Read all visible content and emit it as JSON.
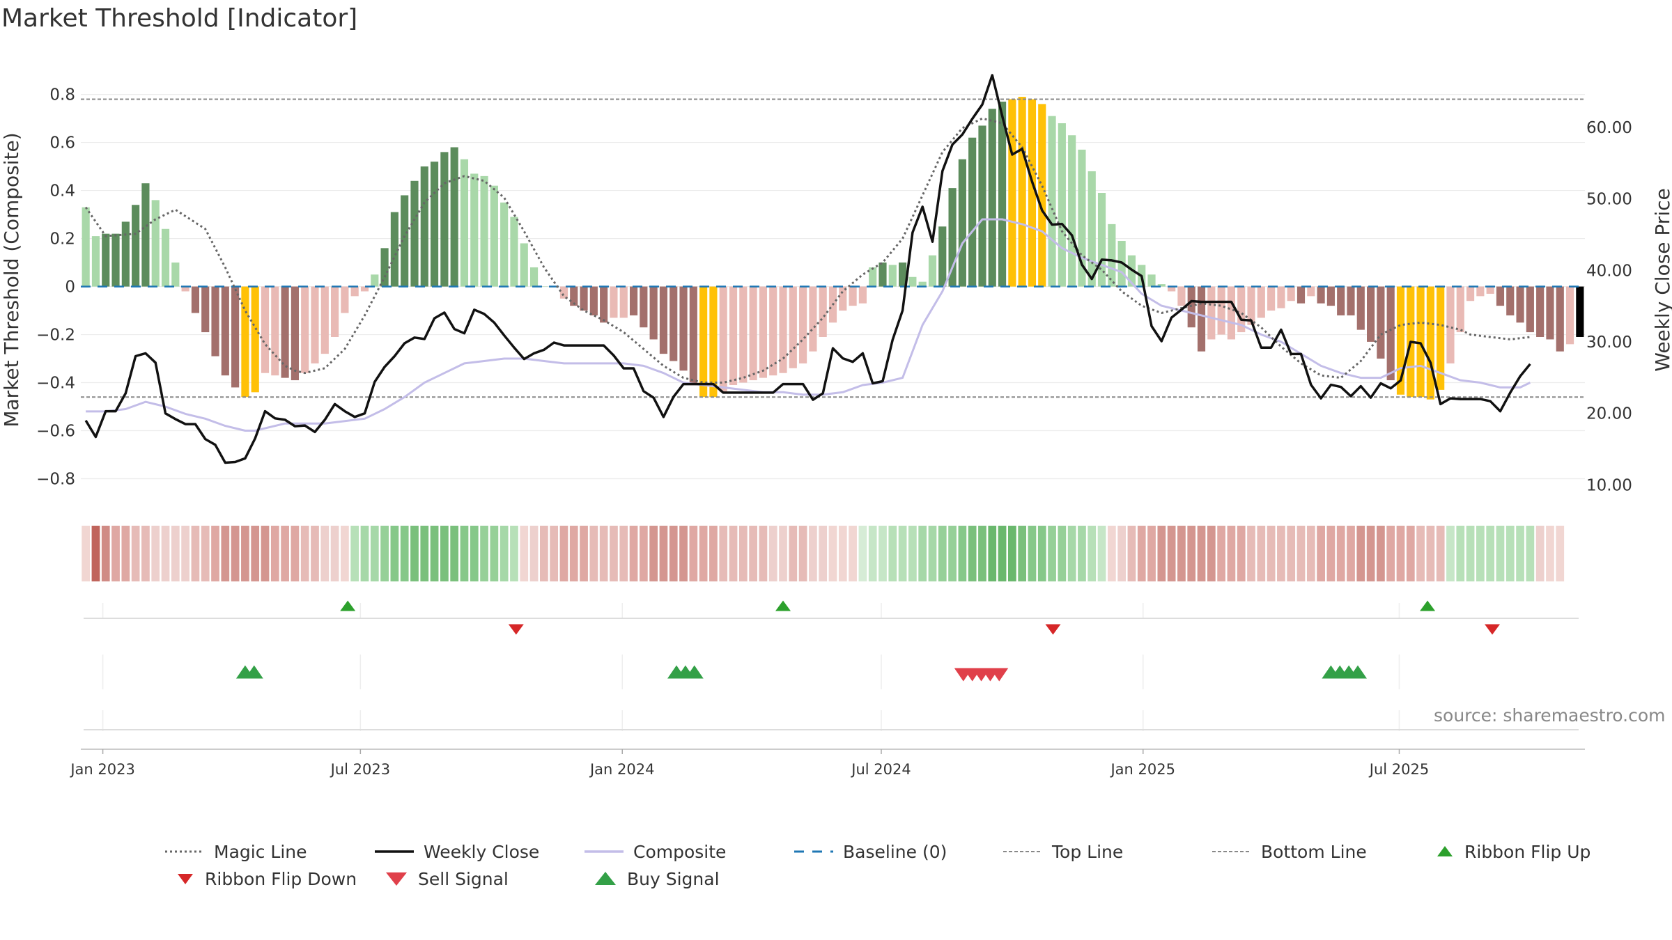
{
  "chart_data": {
    "type": "bar",
    "title": "Market Threshold [Indicator]",
    "ylabel": "Market Threshold (Composite)",
    "y2label": "Weekly Close Price",
    "ylim": [
      -0.9,
      0.88
    ],
    "y2lim": [
      7.5,
      67.3
    ],
    "yticks": [
      -0.8,
      -0.6,
      -0.4,
      -0.2,
      0,
      0.2,
      0.4,
      0.6,
      0.8
    ],
    "ytick_labels": [
      "−0.8",
      "−0.6",
      "−0.4",
      "−0.2",
      "0",
      "0.2",
      "0.4",
      "0.6",
      "0.8"
    ],
    "y2ticks": [
      10,
      20,
      30,
      40,
      50,
      60
    ],
    "y2tick_labels": [
      "10.00",
      "20.00",
      "30.00",
      "40.00",
      "50.00",
      "60.00"
    ],
    "xtick_labels": [
      "Jan 2023",
      "Jul 2023",
      "Jan 2024",
      "Jul 2024",
      "Jan 2025",
      "Jul 2025"
    ],
    "xtick_weeks": [
      1.71,
      27.57,
      53.86,
      79.86,
      106.14,
      131.86
    ],
    "legend_position": "bottom",
    "top_line": 0.78,
    "bottom_line": -0.46,
    "bar_values": [
      0.33,
      0.21,
      0.22,
      0.22,
      0.27,
      0.34,
      0.43,
      0.36,
      0.24,
      0.1,
      -0.02,
      -0.11,
      -0.19,
      -0.29,
      -0.37,
      -0.42,
      -0.46,
      -0.44,
      -0.36,
      -0.37,
      -0.38,
      -0.39,
      -0.36,
      -0.32,
      -0.28,
      -0.21,
      -0.11,
      -0.04,
      -0.02,
      0.05,
      0.16,
      0.31,
      0.38,
      0.44,
      0.5,
      0.52,
      0.56,
      0.58,
      0.53,
      0.47,
      0.46,
      0.42,
      0.35,
      0.29,
      0.18,
      0.08,
      0.0,
      0.0,
      -0.05,
      -0.08,
      -0.1,
      -0.12,
      -0.15,
      -0.13,
      -0.13,
      -0.12,
      -0.17,
      -0.22,
      -0.28,
      -0.31,
      -0.35,
      -0.41,
      -0.46,
      -0.46,
      -0.44,
      -0.41,
      -0.4,
      -0.39,
      -0.38,
      -0.37,
      -0.36,
      -0.34,
      -0.32,
      -0.27,
      -0.21,
      -0.15,
      -0.1,
      -0.08,
      -0.07,
      0.08,
      0.1,
      0.09,
      0.1,
      0.04,
      0.02,
      0.13,
      0.25,
      0.41,
      0.53,
      0.62,
      0.67,
      0.74,
      0.77,
      0.78,
      0.79,
      0.78,
      0.76,
      0.71,
      0.68,
      0.63,
      0.57,
      0.48,
      0.39,
      0.26,
      0.19,
      0.13,
      0.09,
      0.05,
      0.01,
      -0.02,
      -0.08,
      -0.17,
      -0.27,
      -0.22,
      -0.2,
      -0.22,
      -0.19,
      -0.16,
      -0.13,
      -0.1,
      -0.09,
      -0.06,
      -0.07,
      -0.04,
      -0.07,
      -0.08,
      -0.12,
      -0.12,
      -0.18,
      -0.23,
      -0.3,
      -0.39,
      -0.45,
      -0.46,
      -0.46,
      -0.47,
      -0.43,
      -0.32,
      -0.19,
      -0.06,
      -0.04,
      -0.03,
      -0.08,
      -0.12,
      -0.15,
      -0.19,
      -0.21,
      -0.22,
      -0.27,
      -0.24,
      -0.21
    ],
    "bar_colors": [
      "#a9d8a9",
      "#a9d8a9",
      "#5c8c5c",
      "#5c8c5c",
      "#5c8c5c",
      "#5c8c5c",
      "#5c8c5c",
      "#a9d8a9",
      "#a9d8a9",
      "#a9d8a9",
      "#e9bab5",
      "#a3706c",
      "#a3706c",
      "#a3706c",
      "#a3706c",
      "#a3706c",
      "#ffc107",
      "#ffc107",
      "#e9bab5",
      "#e9bab5",
      "#a3706c",
      "#a3706c",
      "#e9bab5",
      "#e9bab5",
      "#e9bab5",
      "#e9bab5",
      "#e9bab5",
      "#e9bab5",
      "#e9bab5",
      "#a9d8a9",
      "#5c8c5c",
      "#5c8c5c",
      "#5c8c5c",
      "#5c8c5c",
      "#5c8c5c",
      "#5c8c5c",
      "#5c8c5c",
      "#5c8c5c",
      "#a9d8a9",
      "#a9d8a9",
      "#a9d8a9",
      "#a9d8a9",
      "#a9d8a9",
      "#a9d8a9",
      "#a9d8a9",
      "#a9d8a9",
      "#a9d8a9",
      "#a9d8a9",
      "#e9bab5",
      "#a3706c",
      "#a3706c",
      "#a3706c",
      "#a3706c",
      "#e9bab5",
      "#e9bab5",
      "#a3706c",
      "#a3706c",
      "#a3706c",
      "#a3706c",
      "#a3706c",
      "#a3706c",
      "#a3706c",
      "#ffc107",
      "#ffc107",
      "#e9bab5",
      "#e9bab5",
      "#e9bab5",
      "#e9bab5",
      "#e9bab5",
      "#e9bab5",
      "#e9bab5",
      "#e9bab5",
      "#e9bab5",
      "#e9bab5",
      "#e9bab5",
      "#e9bab5",
      "#e9bab5",
      "#e9bab5",
      "#e9bab5",
      "#a9d8a9",
      "#5c8c5c",
      "#a9d8a9",
      "#5c8c5c",
      "#a9d8a9",
      "#a9d8a9",
      "#a9d8a9",
      "#5c8c5c",
      "#5c8c5c",
      "#5c8c5c",
      "#5c8c5c",
      "#5c8c5c",
      "#5c8c5c",
      "#5c8c5c",
      "#ffc107",
      "#ffc107",
      "#ffc107",
      "#ffc107",
      "#a9d8a9",
      "#a9d8a9",
      "#a9d8a9",
      "#a9d8a9",
      "#a9d8a9",
      "#a9d8a9",
      "#a9d8a9",
      "#a9d8a9",
      "#a9d8a9",
      "#a9d8a9",
      "#a9d8a9",
      "#a9d8a9",
      "#e9bab5",
      "#e9bab5",
      "#a3706c",
      "#a3706c",
      "#e9bab5",
      "#e9bab5",
      "#e9bab5",
      "#e9bab5",
      "#e9bab5",
      "#e9bab5",
      "#e9bab5",
      "#e9bab5",
      "#e9bab5",
      "#a3706c",
      "#e9bab5",
      "#a3706c",
      "#a3706c",
      "#a3706c",
      "#a3706c",
      "#a3706c",
      "#a3706c",
      "#a3706c",
      "#a3706c",
      "#ffc107",
      "#ffc107",
      "#ffc107",
      "#ffc107",
      "#ffc107",
      "#e9bab5",
      "#e9bab5",
      "#e9bab5",
      "#e9bab5",
      "#e9bab5",
      "#a3706c",
      "#a3706c",
      "#a3706c",
      "#a3706c",
      "#a3706c",
      "#a3706c",
      "#a3706c",
      "#e9bab5"
    ],
    "ribbon_colors": [
      "#f1d6d2",
      "#c0645c",
      "#d08b85",
      "#dfa8a3",
      "#dfa8a3",
      "#e6bbb7",
      "#e6bbb7",
      "#edd0cd",
      "#edd0cd",
      "#edd0cd",
      "#edd0cd",
      "#e6bbb7",
      "#e6bbb7",
      "#dfa8a3",
      "#d49690",
      "#d49690",
      "#d49690",
      "#d49690",
      "#d49690",
      "#dfa8a3",
      "#dfa8a3",
      "#dfa8a3",
      "#e6bbb7",
      "#e6bbb7",
      "#edd0cd",
      "#edd0cd",
      "#f1d6d2",
      "#b7e0b8",
      "#a6d8a8",
      "#a6d8a8",
      "#96d098",
      "#86c889",
      "#86c889",
      "#7ac07c",
      "#7ac07c",
      "#7ac07c",
      "#7ac07c",
      "#7ac07c",
      "#86c889",
      "#86c889",
      "#96d098",
      "#96d098",
      "#a6d8a8",
      "#b7e0b8",
      "#f1d6d2",
      "#edd0cd",
      "#e6bbb7",
      "#e6bbb7",
      "#dfa8a3",
      "#dfa8a3",
      "#dfa8a3",
      "#e6bbb7",
      "#e6bbb7",
      "#e6bbb7",
      "#e6bbb7",
      "#dfa8a3",
      "#dfa8a3",
      "#d49690",
      "#d49690",
      "#d49690",
      "#d49690",
      "#dfa8a3",
      "#dfa8a3",
      "#dfa8a3",
      "#e6bbb7",
      "#e6bbb7",
      "#e6bbb7",
      "#e6bbb7",
      "#e6bbb7",
      "#edd0cd",
      "#edd0cd",
      "#e6bbb7",
      "#e6bbb7",
      "#edd0cd",
      "#edd0cd",
      "#f1d6d2",
      "#f1d6d2",
      "#f1d6d2",
      "#d6ecd6",
      "#c6e6c7",
      "#c6e6c7",
      "#b7e0b8",
      "#b7e0b8",
      "#b7e0b8",
      "#a6d8a8",
      "#a6d8a8",
      "#96d098",
      "#96d098",
      "#86c889",
      "#7ac07c",
      "#7ac07c",
      "#6ab86d",
      "#6ab86d",
      "#6ab86d",
      "#7ac07c",
      "#86c889",
      "#86c889",
      "#96d098",
      "#96d098",
      "#a6d8a8",
      "#a6d8a8",
      "#b7e0b8",
      "#c6e6c7",
      "#f1d6d2",
      "#edd0cd",
      "#e6bbb7",
      "#dfa8a3",
      "#dfa8a3",
      "#d49690",
      "#d49690",
      "#d49690",
      "#d49690",
      "#d49690",
      "#d49690",
      "#dfa8a3",
      "#dfa8a3",
      "#dfa8a3",
      "#e6bbb7",
      "#e6bbb7",
      "#e6bbb7",
      "#e6bbb7",
      "#e6bbb7",
      "#e6bbb7",
      "#e6bbb7",
      "#dfa8a3",
      "#dfa8a3",
      "#dfa8a3",
      "#dfa8a3",
      "#d49690",
      "#d49690",
      "#d49690",
      "#dfa8a3",
      "#dfa8a3",
      "#dfa8a3",
      "#e6bbb7",
      "#e6bbb7",
      "#e6bbb7",
      "#c6e6c7",
      "#b7e0b8",
      "#b7e0b8",
      "#b7e0b8",
      "#b7e0b8",
      "#b7e0b8",
      "#b7e0b8",
      "#b7e0b8",
      "#b7e0b8",
      "#edd0cd",
      "#f1d6d2",
      "#f1d6d2"
    ],
    "series": [
      {
        "name": "Magic Line",
        "axis": "left",
        "x": [
          0,
          2,
          5,
          7,
          9,
          12,
          14,
          16,
          18,
          20,
          21,
          22,
          24,
          26,
          28,
          30,
          32,
          34,
          36,
          38,
          40,
          42,
          44,
          46,
          48,
          50,
          52,
          54,
          56,
          58,
          60,
          62,
          64,
          66,
          68,
          70,
          72,
          74,
          76,
          78,
          80,
          82,
          84,
          86,
          88,
          90,
          92,
          94,
          96,
          98,
          100,
          102,
          104,
          106,
          108,
          110,
          112,
          114,
          116,
          118,
          120,
          122,
          124,
          126,
          128,
          130,
          132,
          134,
          136,
          138,
          139,
          141,
          143,
          145
        ],
        "values": [
          0.33,
          0.21,
          0.22,
          0.28,
          0.32,
          0.24,
          0.08,
          -0.1,
          -0.24,
          -0.33,
          -0.35,
          -0.36,
          -0.34,
          -0.26,
          -0.12,
          0.04,
          0.21,
          0.35,
          0.43,
          0.46,
          0.44,
          0.37,
          0.23,
          0.08,
          -0.04,
          -0.1,
          -0.14,
          -0.19,
          -0.26,
          -0.33,
          -0.38,
          -0.4,
          -0.4,
          -0.38,
          -0.35,
          -0.3,
          -0.22,
          -0.13,
          -0.02,
          0.05,
          0.1,
          0.2,
          0.38,
          0.56,
          0.66,
          0.7,
          0.68,
          0.58,
          0.42,
          0.23,
          0.13,
          0.07,
          -0.02,
          -0.08,
          -0.11,
          -0.09,
          -0.07,
          -0.08,
          -0.11,
          -0.17,
          -0.25,
          -0.32,
          -0.37,
          -0.38,
          -0.31,
          -0.2,
          -0.16,
          -0.15,
          -0.16,
          -0.18,
          -0.2,
          -0.21,
          -0.22,
          -0.21
        ]
      },
      {
        "name": "Weekly Close",
        "axis": "right",
        "x": [
          0,
          1,
          2,
          3,
          4,
          5,
          6,
          7,
          8,
          9,
          10,
          11,
          12,
          13,
          14,
          15,
          16,
          17,
          18,
          19,
          20,
          21,
          22,
          23,
          24,
          25,
          26,
          27,
          28,
          29,
          30,
          31,
          32,
          33,
          34,
          35,
          36,
          37,
          38,
          39,
          40,
          41,
          42,
          43,
          44,
          45,
          46,
          47,
          48,
          49,
          50,
          51,
          52,
          53,
          54,
          55,
          56,
          57,
          58,
          59,
          60,
          61,
          62,
          63,
          64,
          65,
          66,
          67,
          68,
          69,
          70,
          71,
          72,
          73,
          74,
          75,
          76,
          77,
          78,
          79,
          80,
          81,
          82,
          83,
          84,
          85,
          86,
          87,
          88,
          89,
          90,
          91,
          92,
          93,
          94,
          95,
          96,
          97,
          98,
          99,
          100,
          101,
          102,
          103,
          104,
          105,
          106,
          107,
          108,
          109,
          110,
          111,
          112,
          113,
          114,
          115,
          116,
          117,
          118,
          119,
          120,
          121,
          122,
          123,
          124,
          125,
          126,
          127,
          128,
          129,
          130,
          131,
          132,
          133,
          134,
          135,
          136,
          137,
          138,
          139,
          140,
          141,
          142,
          143,
          144,
          145
        ],
        "values": [
          19.0,
          16.7,
          20.3,
          20.3,
          22.8,
          28.0,
          28.4,
          27.1,
          20.0,
          19.2,
          18.5,
          18.5,
          16.4,
          15.6,
          13.1,
          13.2,
          13.7,
          16.5,
          20.3,
          19.3,
          19.1,
          18.2,
          18.3,
          17.4,
          19.1,
          21.3,
          20.3,
          19.5,
          20.0,
          24.4,
          26.5,
          28.0,
          29.8,
          30.6,
          30.4,
          33.3,
          34.1,
          31.8,
          31.2,
          34.5,
          33.9,
          32.7,
          30.9,
          29.2,
          27.6,
          28.4,
          28.9,
          29.9,
          29.5,
          29.5,
          29.5,
          29.5,
          29.5,
          28.1,
          26.3,
          26.3,
          23.1,
          22.2,
          19.5,
          22.3,
          24.1,
          24.1,
          24.1,
          24.1,
          22.9,
          22.9,
          22.9,
          22.9,
          22.9,
          22.9,
          24.1,
          24.1,
          24.1,
          21.9,
          22.8,
          29.1,
          27.7,
          27.2,
          28.4,
          24.2,
          24.5,
          30.3,
          34.4,
          45.3,
          48.9,
          44.0,
          53.9,
          57.6,
          59.0,
          61.2,
          63.2,
          67.3,
          61.6,
          56.2,
          57.0,
          52.4,
          48.4,
          46.4,
          46.5,
          44.9,
          40.8,
          38.8,
          41.5,
          41.4,
          41.1,
          40.1,
          39.2,
          32.2,
          30.1,
          33.4,
          34.5,
          35.7,
          35.6,
          35.6,
          35.6,
          35.6,
          33.1,
          33.0,
          29.2,
          29.2,
          31.7,
          28.3,
          28.3,
          24.0,
          22.1,
          24.0,
          23.7,
          22.4,
          23.8,
          22.2,
          24.2,
          23.5,
          24.6,
          30.0,
          29.8,
          27.1,
          21.3,
          22.1,
          22.0,
          22.0,
          22.0,
          21.7,
          20.3,
          22.9,
          25.2,
          26.9
        ]
      },
      {
        "name": "Composite",
        "axis": "left",
        "x": [
          0,
          2,
          4,
          6,
          8,
          10,
          12,
          14,
          16,
          17,
          18,
          20,
          22,
          24,
          26,
          28,
          30,
          32,
          34,
          36,
          38,
          40,
          42,
          44,
          46,
          48,
          50,
          52,
          54,
          56,
          58,
          60,
          62,
          64,
          66,
          68,
          70,
          72,
          74,
          76,
          78,
          80,
          82,
          84,
          86,
          88,
          90,
          92,
          94,
          96,
          98,
          100,
          102,
          104,
          106,
          108,
          110,
          112,
          114,
          116,
          118,
          120,
          122,
          124,
          126,
          128,
          130,
          132,
          134,
          136,
          138,
          140,
          142,
          144,
          145
        ],
        "values": [
          -0.52,
          -0.52,
          -0.51,
          -0.48,
          -0.5,
          -0.53,
          -0.55,
          -0.58,
          -0.6,
          -0.6,
          -0.59,
          -0.57,
          -0.57,
          -0.57,
          -0.56,
          -0.55,
          -0.51,
          -0.46,
          -0.4,
          -0.36,
          -0.32,
          -0.31,
          -0.3,
          -0.3,
          -0.31,
          -0.32,
          -0.32,
          -0.32,
          -0.32,
          -0.33,
          -0.36,
          -0.4,
          -0.41,
          -0.42,
          -0.43,
          -0.44,
          -0.44,
          -0.45,
          -0.45,
          -0.44,
          -0.41,
          -0.4,
          -0.38,
          -0.16,
          -0.02,
          0.18,
          0.28,
          0.28,
          0.26,
          0.23,
          0.16,
          0.12,
          0.09,
          0.06,
          -0.03,
          -0.08,
          -0.1,
          -0.12,
          -0.14,
          -0.16,
          -0.2,
          -0.23,
          -0.28,
          -0.33,
          -0.36,
          -0.38,
          -0.38,
          -0.34,
          -0.33,
          -0.36,
          -0.39,
          -0.4,
          -0.42,
          -0.42,
          -0.4
        ]
      }
    ],
    "ribbon_flip_up_weeks": [
      26.3,
      70.0,
      134.7
    ],
    "ribbon_flip_down_weeks": [
      43.2,
      97.1,
      141.2
    ],
    "buy_signal_weeks": [
      16.0,
      16.9,
      59.3,
      60.2,
      61.1,
      125.0,
      125.9,
      126.8,
      127.7
    ],
    "sell_signal_weeks": [
      88.1,
      89.0,
      89.9,
      90.8,
      91.7
    ],
    "legend": [
      {
        "label": "Magic Line"
      },
      {
        "label": "Weekly Close"
      },
      {
        "label": "Composite"
      },
      {
        "label": "Baseline (0)"
      },
      {
        "label": "Top Line"
      },
      {
        "label": "Bottom Line"
      },
      {
        "label": "Ribbon Flip Up"
      },
      {
        "label": "Ribbon Flip Down"
      },
      {
        "label": "Sell Signal"
      },
      {
        "label": "Buy Signal"
      }
    ]
  },
  "colors": {
    "magic_line": "#666666",
    "weekly_close": "#111111",
    "composite": "#c3bde8",
    "baseline": "#1f77b4",
    "threshold_lines": "#888888",
    "flip_up": "#2ca02c",
    "flip_down": "#d62728",
    "buy_signal": "#33a047",
    "sell_signal": "#e0404a"
  },
  "footer": {
    "source": "source: sharemaestro.com"
  }
}
